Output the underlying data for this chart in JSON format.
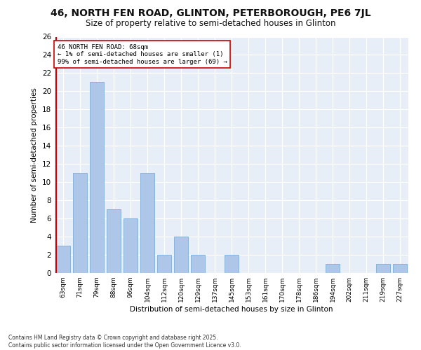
{
  "title": "46, NORTH FEN ROAD, GLINTON, PETERBOROUGH, PE6 7JL",
  "subtitle": "Size of property relative to semi-detached houses in Glinton",
  "xlabel": "Distribution of semi-detached houses by size in Glinton",
  "ylabel": "Number of semi-detached properties",
  "categories": [
    "63sqm",
    "71sqm",
    "79sqm",
    "88sqm",
    "96sqm",
    "104sqm",
    "112sqm",
    "120sqm",
    "129sqm",
    "137sqm",
    "145sqm",
    "153sqm",
    "161sqm",
    "170sqm",
    "178sqm",
    "186sqm",
    "194sqm",
    "202sqm",
    "211sqm",
    "219sqm",
    "227sqm"
  ],
  "values": [
    3,
    11,
    21,
    7,
    6,
    11,
    2,
    4,
    2,
    0,
    2,
    0,
    0,
    0,
    0,
    0,
    1,
    0,
    0,
    1,
    1
  ],
  "bar_color": "#aec6e8",
  "bar_edge_color": "#7aadd4",
  "highlight_index": 0,
  "highlight_line_color": "#cc0000",
  "annotation_text": "46 NORTH FEN ROAD: 68sqm\n← 1% of semi-detached houses are smaller (1)\n99% of semi-detached houses are larger (69) →",
  "annotation_box_color": "#ffffff",
  "annotation_box_edge_color": "#cc0000",
  "ylim": [
    0,
    26
  ],
  "yticks": [
    0,
    2,
    4,
    6,
    8,
    10,
    12,
    14,
    16,
    18,
    20,
    22,
    24,
    26
  ],
  "background_color": "#e8eef8",
  "footer_line1": "Contains HM Land Registry data © Crown copyright and database right 2025.",
  "footer_line2": "Contains public sector information licensed under the Open Government Licence v3.0."
}
